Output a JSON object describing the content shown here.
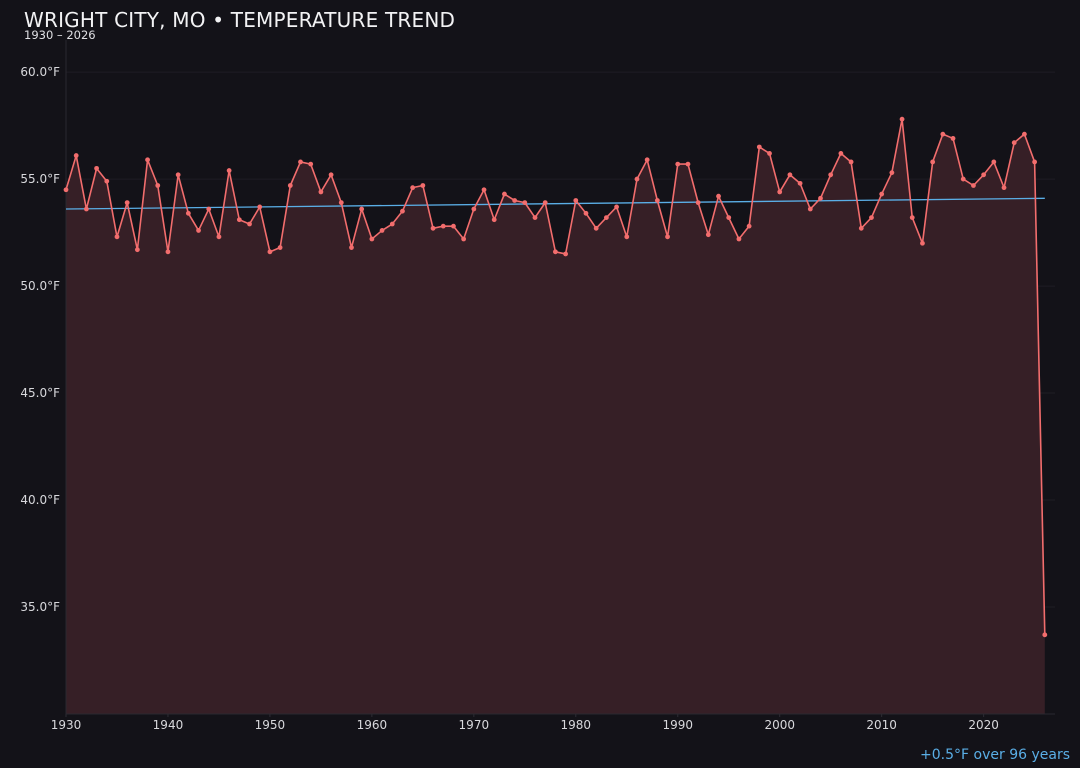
{
  "chart_data": {
    "type": "line",
    "title": "WRIGHT CITY, MO • TEMPERATURE TREND",
    "subtitle": "1930 – 2026",
    "xlabel": "",
    "ylabel": "",
    "x_ticks": [
      "1930",
      "1940",
      "1950",
      "1960",
      "1970",
      "1980",
      "1990",
      "2000",
      "2010",
      "2020"
    ],
    "y_ticks": [
      "35.0°F",
      "40.0°F",
      "45.0°F",
      "50.0°F",
      "55.0°F",
      "60.0°F"
    ],
    "xlim": [
      1930,
      2027
    ],
    "ylim": [
      30,
      61.5
    ],
    "grid": true,
    "colors": {
      "line": "#f26d6d",
      "fill": "#361f26",
      "trend": "#5aaee6",
      "background": "#131218",
      "grid": "#1f1d24"
    },
    "series": [
      {
        "x": [
          1930,
          1931,
          1932,
          1933,
          1934,
          1935,
          1936,
          1937,
          1938,
          1939,
          1940,
          1941,
          1942,
          1943,
          1944,
          1945,
          1946,
          1947,
          1948,
          1949,
          1950,
          1951,
          1952,
          1953,
          1954,
          1955,
          1956,
          1957,
          1958,
          1959,
          1960,
          1961,
          1962,
          1963,
          1964,
          1965,
          1966,
          1967,
          1968,
          1969,
          1970,
          1971,
          1972,
          1973,
          1974,
          1975,
          1976,
          1977,
          1978,
          1979,
          1980,
          1981,
          1982,
          1983,
          1984,
          1985,
          1986,
          1987,
          1988,
          1989,
          1990,
          1991,
          1992,
          1993,
          1994,
          1995,
          1996,
          1997,
          1998,
          1999,
          2000,
          2001,
          2002,
          2003,
          2004,
          2005,
          2006,
          2007,
          2008,
          2009,
          2010,
          2011,
          2012,
          2013,
          2014,
          2015,
          2016,
          2017,
          2018,
          2019,
          2020,
          2021,
          2022,
          2023,
          2024,
          2025,
          2026
        ],
        "values": [
          54.5,
          56.1,
          53.6,
          55.5,
          54.9,
          52.3,
          53.9,
          51.7,
          55.9,
          54.7,
          51.6,
          55.2,
          53.4,
          52.6,
          53.6,
          52.3,
          55.4,
          53.1,
          52.9,
          53.7,
          51.6,
          51.8,
          54.7,
          55.8,
          55.7,
          54.4,
          55.2,
          53.9,
          51.8,
          53.6,
          52.2,
          52.6,
          52.9,
          53.5,
          54.6,
          54.7,
          52.7,
          52.8,
          52.8,
          52.2,
          53.6,
          54.5,
          53.1,
          54.3,
          54.0,
          53.9,
          53.2,
          53.9,
          51.6,
          51.5,
          54.0,
          53.4,
          52.7,
          53.2,
          53.7,
          52.3,
          55.0,
          55.9,
          54.0,
          52.3,
          55.7,
          55.7,
          53.9,
          52.4,
          54.2,
          53.2,
          52.2,
          52.8,
          56.5,
          56.2,
          54.4,
          55.2,
          54.8,
          53.6,
          54.1,
          55.2,
          56.2,
          55.8,
          52.7,
          53.2,
          54.3,
          55.3,
          57.8,
          53.2,
          52.0,
          55.8,
          57.1,
          56.9,
          55.0,
          54.7,
          55.2,
          55.8,
          54.6,
          56.7,
          57.1,
          55.8,
          33.7
        ]
      }
    ],
    "trend": {
      "name": "",
      "x": [
        1930,
        2026
      ],
      "values": [
        53.6,
        54.1
      ]
    },
    "annotation": "+0.5°F over 96 years"
  }
}
